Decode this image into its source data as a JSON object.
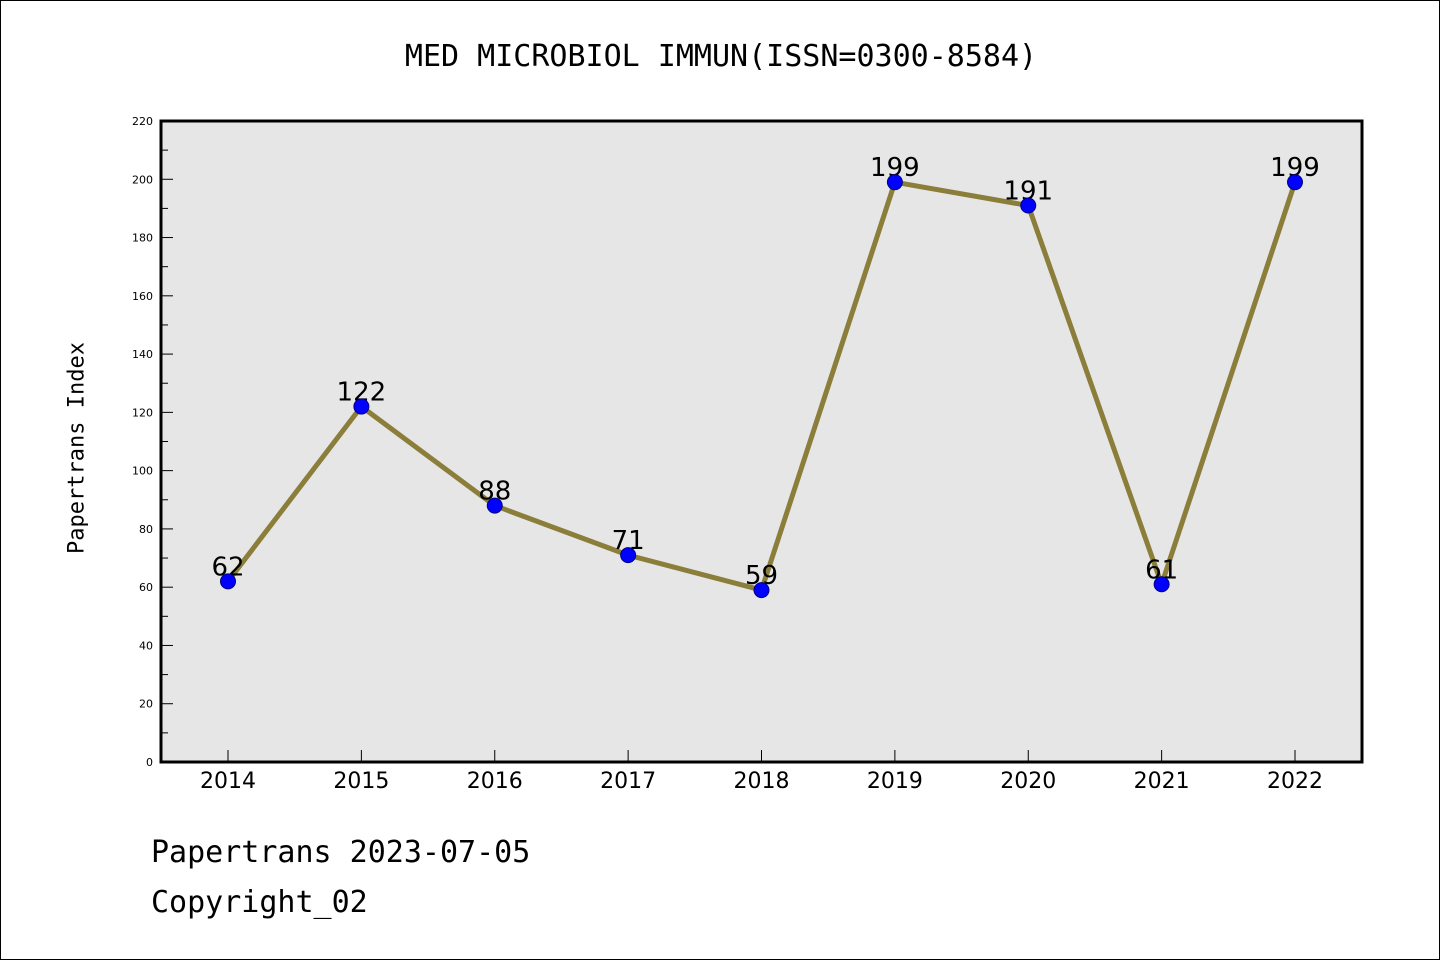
{
  "footer": {
    "line1": "Papertrans 2023-07-05",
    "line2": "Copyright_02"
  },
  "chart_data": {
    "type": "line",
    "title": "MED MICROBIOL IMMUN(ISSN=0300-8584)",
    "xlabel": "",
    "ylabel": "Papertrans Index",
    "categories": [
      "2014",
      "2015",
      "2016",
      "2017",
      "2018",
      "2019",
      "2020",
      "2021",
      "2022"
    ],
    "series": [
      {
        "values": [
          62,
          122,
          88,
          71,
          59,
          199,
          191,
          61,
          199
        ]
      }
    ],
    "ylim": [
      0,
      220
    ],
    "yticks": [
      0,
      20,
      40,
      60,
      80,
      100,
      120,
      140,
      160,
      180,
      200,
      220
    ],
    "grid": false,
    "legend": "none",
    "data_labels": true,
    "colors": {
      "plot_background": "#e6e6e6",
      "line": "#8b7d3a",
      "marker_fill": "#0000ff",
      "marker_stroke": "#000080"
    }
  }
}
